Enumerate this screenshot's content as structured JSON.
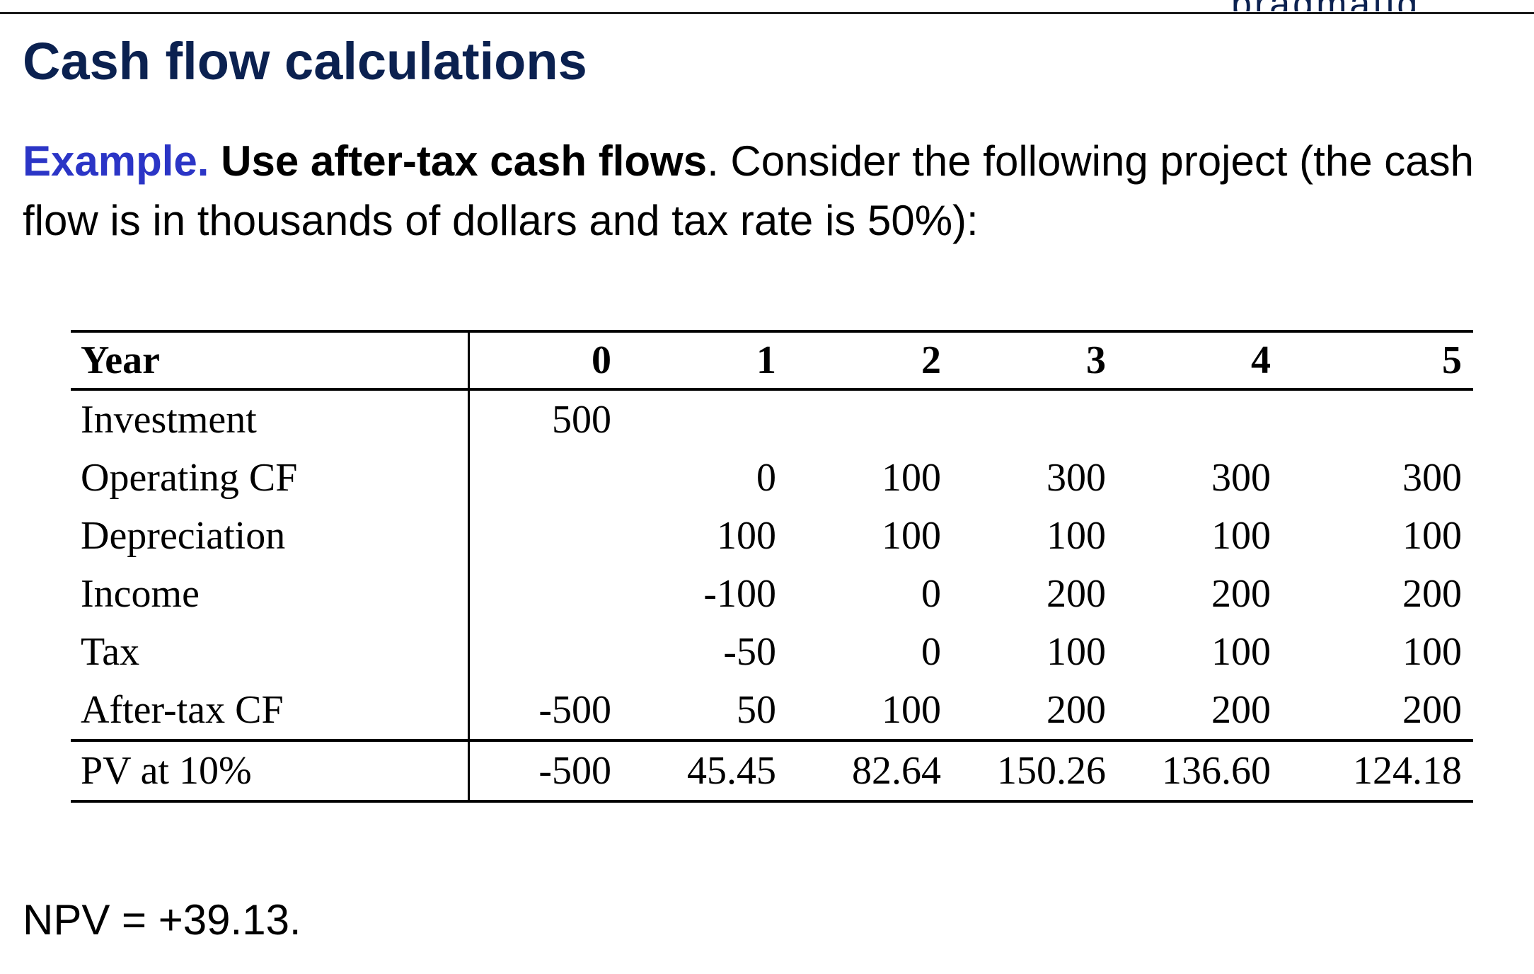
{
  "header": {
    "fragment": "pragmatig"
  },
  "title": "Cash flow calculations",
  "intro": {
    "lead": "Example.",
    "emphasis": "Use after-tax cash flows",
    "period": ".",
    "text_line": "  Consider the following project (the cash flow is in thousands of dollars and tax rate is 50%):"
  },
  "table": {
    "columns": [
      "Year",
      "0",
      "1",
      "2",
      "3",
      "4",
      "5"
    ],
    "rows": [
      {
        "label": "Investment",
        "values": [
          "500",
          "",
          "",
          "",
          "",
          ""
        ]
      },
      {
        "label": "Operating CF",
        "values": [
          "",
          "0",
          "100",
          "300",
          "300",
          "300"
        ]
      },
      {
        "label": "Depreciation",
        "values": [
          "",
          "100",
          "100",
          "100",
          "100",
          "100"
        ]
      },
      {
        "label": "Income",
        "values": [
          "",
          "-100",
          "0",
          "200",
          "200",
          "200"
        ]
      },
      {
        "label": "Tax",
        "values": [
          "",
          "-50",
          "0",
          "100",
          "100",
          "100"
        ]
      },
      {
        "label": "After-tax CF",
        "values": [
          "-500",
          "50",
          "100",
          "200",
          "200",
          "200"
        ]
      },
      {
        "label": "PV at 10%",
        "values": [
          "-500",
          "45.45",
          "82.64",
          "150.26",
          "136.60",
          "124.18"
        ]
      }
    ]
  },
  "npv": "NPV = +39.13."
}
